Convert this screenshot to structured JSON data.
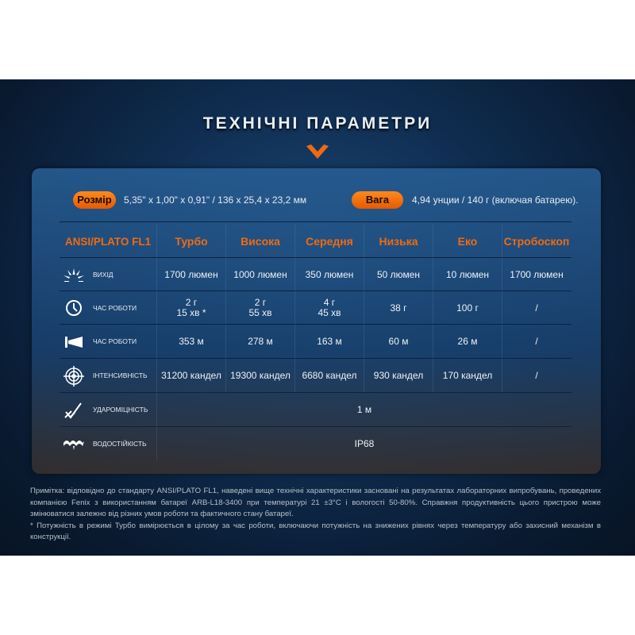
{
  "title": "ТЕХНІЧНІ ПАРАМЕТРИ",
  "colors": {
    "accent": "#f06a10",
    "background": "#0f2c4f"
  },
  "specs": {
    "size_label": "Розмір",
    "size_value": "5,35\" x 1,00\" x 0,91\" / 136 x 25,4 x 23,2 мм",
    "weight_label": "Вага",
    "weight_value": "4,94 унции / 140 г (включая батарею)."
  },
  "table": {
    "headers": [
      "ANSI/PLATO FL1",
      "Турбо",
      "Висока",
      "Середня",
      "Низька",
      "Еко",
      "Стробоскоп"
    ],
    "rows": [
      {
        "icon": "brightness-icon",
        "label": "ВИХІД",
        "values": [
          "1700 люмен",
          "1000 люмен",
          "350 люмен",
          "50 люмен",
          "10 люмен",
          "1700 люмен"
        ]
      },
      {
        "icon": "clock-icon",
        "label": "ЧАС РОБОТИ",
        "values": [
          "2 г\n15 хв *",
          "2 г\n55 хв",
          "4 г\n45 хв",
          "38 г",
          "100 г",
          "/"
        ]
      },
      {
        "icon": "beam-distance-icon",
        "label": "ЧАС РОБОТИ",
        "values": [
          "353 м",
          "278 м",
          "163 м",
          "60 м",
          "26 м",
          "/"
        ]
      },
      {
        "icon": "target-icon",
        "label": "ІНТЕНСИВНІСТЬ",
        "values": [
          "31200 кандел",
          "19300 кандел",
          "6680 кандел",
          "930 кандел",
          "170 кандел",
          "/"
        ]
      },
      {
        "icon": "impact-icon",
        "label": "УДАРОМІЦНІСТЬ",
        "value": "1 м"
      },
      {
        "icon": "waterproof-icon",
        "label": "ВОДОСТІЙКІСТЬ",
        "value": "IP68"
      }
    ]
  },
  "notes": {
    "main": "Примітка: відповідно до стандарту ANSI/PLATO FL1, наведені вище технічні характеристики засновані на результатах лабораторних випробувань, проведених компанією Fenix з використанням батареї ARB-L18-3400 при температурі 21 ±3°C і вологості 50-80%. Справжня продуктивність цього пристрою може змінюватися залежно від різних умов роботи та фактичного стану батареї.",
    "footnote": "* Потужність в режимі Турбо вимірюється в цілому за час роботи, включаючи потужність на знижених рівнях через температуру або захисний механізм в конструкції."
  }
}
